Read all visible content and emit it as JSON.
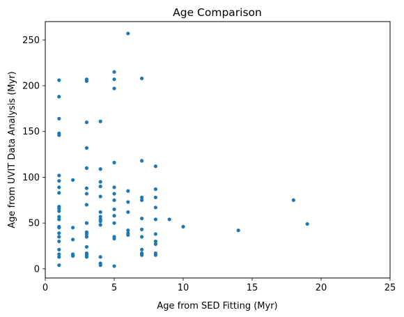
{
  "chart_data": {
    "type": "scatter",
    "title": "Age Comparison",
    "xlabel": "Age from SED Fitting (Myr)",
    "ylabel": "Age from UVIT Data Analysis (Myr)",
    "xlim": [
      0,
      25
    ],
    "ylim": [
      -10,
      270
    ],
    "xticks": [
      0,
      5,
      10,
      15,
      20,
      25
    ],
    "yticks": [
      0,
      50,
      100,
      150,
      200,
      250
    ],
    "grid": false,
    "marker_color": "#1f77b4",
    "points": [
      [
        1,
        206
      ],
      [
        1,
        188
      ],
      [
        1,
        164
      ],
      [
        1,
        148
      ],
      [
        1,
        146
      ],
      [
        1,
        102
      ],
      [
        1,
        96
      ],
      [
        1,
        89
      ],
      [
        1,
        83
      ],
      [
        1,
        68
      ],
      [
        1,
        66
      ],
      [
        1,
        63
      ],
      [
        1,
        57
      ],
      [
        1,
        54
      ],
      [
        1,
        46
      ],
      [
        1,
        45
      ],
      [
        1,
        39
      ],
      [
        1,
        35
      ],
      [
        1,
        30
      ],
      [
        1,
        21
      ],
      [
        1,
        16
      ],
      [
        1,
        13
      ],
      [
        1,
        4
      ],
      [
        2,
        97
      ],
      [
        2,
        45
      ],
      [
        2,
        32
      ],
      [
        2,
        16
      ],
      [
        2,
        14
      ],
      [
        3,
        207
      ],
      [
        3,
        205
      ],
      [
        3,
        160
      ],
      [
        3,
        132
      ],
      [
        3,
        110
      ],
      [
        3,
        88
      ],
      [
        3,
        82
      ],
      [
        3,
        70
      ],
      [
        3,
        50
      ],
      [
        3,
        40
      ],
      [
        3,
        38
      ],
      [
        3,
        35
      ],
      [
        3,
        24
      ],
      [
        3,
        17
      ],
      [
        3,
        15
      ],
      [
        3,
        13
      ],
      [
        4,
        161
      ],
      [
        4,
        109
      ],
      [
        4,
        95
      ],
      [
        4,
        90
      ],
      [
        4,
        79
      ],
      [
        4,
        62
      ],
      [
        4,
        57
      ],
      [
        4,
        54
      ],
      [
        4,
        52
      ],
      [
        4,
        48
      ],
      [
        4,
        13
      ],
      [
        4,
        6
      ],
      [
        4,
        4
      ],
      [
        5,
        215
      ],
      [
        5,
        207
      ],
      [
        5,
        197
      ],
      [
        5,
        116
      ],
      [
        5,
        89
      ],
      [
        5,
        82
      ],
      [
        5,
        75
      ],
      [
        5,
        65
      ],
      [
        5,
        58
      ],
      [
        5,
        50
      ],
      [
        5,
        35
      ],
      [
        5,
        33
      ],
      [
        5,
        3
      ],
      [
        6,
        257
      ],
      [
        6,
        85
      ],
      [
        6,
        73
      ],
      [
        6,
        62
      ],
      [
        6,
        42
      ],
      [
        6,
        39
      ],
      [
        6,
        37
      ],
      [
        7,
        208
      ],
      [
        7,
        118
      ],
      [
        7,
        78
      ],
      [
        7,
        75
      ],
      [
        7,
        55
      ],
      [
        7,
        43
      ],
      [
        7,
        35
      ],
      [
        7,
        21
      ],
      [
        7,
        17
      ],
      [
        7,
        15
      ],
      [
        8,
        112
      ],
      [
        8,
        87
      ],
      [
        8,
        78
      ],
      [
        8,
        67
      ],
      [
        8,
        54
      ],
      [
        8,
        38
      ],
      [
        8,
        30
      ],
      [
        8,
        27
      ],
      [
        8,
        17
      ],
      [
        8,
        15
      ],
      [
        9,
        54
      ],
      [
        10,
        46
      ],
      [
        14,
        42
      ],
      [
        18,
        75
      ],
      [
        19,
        49
      ]
    ]
  }
}
